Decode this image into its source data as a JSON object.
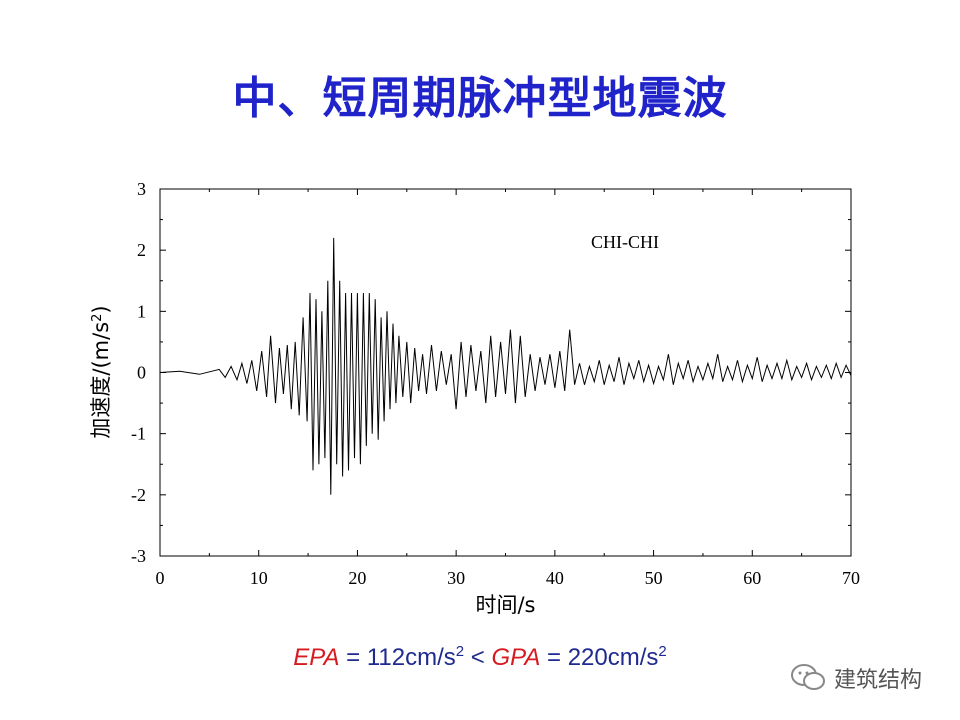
{
  "slide": {
    "title": "中、短周期脉冲型地震波"
  },
  "chart_data": {
    "type": "line",
    "title": "",
    "annotation": "CHI-CHI",
    "xlabel": "时间/s",
    "ylabel_main": "加速度/(m/s",
    "ylabel_sup": "2",
    "ylabel_end": ")",
    "xlim": [
      0,
      70
    ],
    "ylim": [
      -3,
      3
    ],
    "xticks": [
      0,
      10,
      20,
      30,
      40,
      50,
      60,
      70
    ],
    "yticks": [
      -3,
      -2,
      -1,
      0,
      1,
      2,
      3
    ],
    "grid": false,
    "series": [
      {
        "x": [
          0,
          2,
          4,
          6,
          6.6,
          7.2,
          7.8,
          8.3,
          8.8,
          9.3,
          9.8,
          10.3,
          10.8,
          11.2,
          11.7,
          12.1,
          12.5,
          12.9,
          13.3,
          13.7,
          14.1,
          14.5,
          14.9,
          15.2,
          15.5,
          15.8,
          16.1,
          16.4,
          16.7,
          17.0,
          17.3,
          17.6,
          17.9,
          18.2,
          18.5,
          18.8,
          19.1,
          19.4,
          19.7,
          20.0,
          20.3,
          20.6,
          20.9,
          21.2,
          21.5,
          21.8,
          22.1,
          22.4,
          22.7,
          23.0,
          23.3,
          23.6,
          23.9,
          24.2,
          24.6,
          25.0,
          25.4,
          25.8,
          26.2,
          26.6,
          27.0,
          27.5,
          28.0,
          28.5,
          29.0,
          29.5,
          30.0,
          30.5,
          31.0,
          31.5,
          32.0,
          32.5,
          33.0,
          33.5,
          34.0,
          34.5,
          35.0,
          35.5,
          36.0,
          36.5,
          37.0,
          37.5,
          38.0,
          38.5,
          39.0,
          39.5,
          40.0,
          40.5,
          41.0,
          41.5,
          42.0,
          42.5,
          43.0,
          43.5,
          44.0,
          44.5,
          45.0,
          45.5,
          46.0,
          46.5,
          47.0,
          47.5,
          48.0,
          48.5,
          49.0,
          49.5,
          50.0,
          50.5,
          51.0,
          51.5,
          52.0,
          52.5,
          53.0,
          53.5,
          54.0,
          54.5,
          55.0,
          55.5,
          56.0,
          56.5,
          57.0,
          57.5,
          58.0,
          58.5,
          59.0,
          59.5,
          60.0,
          60.5,
          61.0,
          61.5,
          62.0,
          62.5,
          63.0,
          63.5,
          64.0,
          64.5,
          65.0,
          65.5,
          66.0,
          66.5,
          67.0,
          67.5,
          68.0,
          68.5,
          69.0,
          69.5,
          70.0
        ],
        "y": [
          0,
          0.02,
          -0.03,
          0.05,
          -0.08,
          0.1,
          -0.12,
          0.15,
          -0.18,
          0.2,
          -0.3,
          0.35,
          -0.4,
          0.6,
          -0.5,
          0.4,
          -0.35,
          0.45,
          -0.6,
          0.5,
          -0.7,
          0.9,
          -0.8,
          1.3,
          -1.6,
          1.2,
          -1.5,
          1.0,
          -1.4,
          1.5,
          -2.0,
          2.2,
          -1.5,
          1.5,
          -1.7,
          1.3,
          -1.6,
          1.3,
          -1.4,
          1.3,
          -1.5,
          1.3,
          -1.2,
          1.3,
          -1.0,
          1.2,
          -1.1,
          0.9,
          -0.8,
          1.0,
          -0.6,
          0.8,
          -0.5,
          0.6,
          -0.4,
          0.5,
          -0.5,
          0.4,
          -0.3,
          0.3,
          -0.35,
          0.45,
          -0.3,
          0.35,
          -0.2,
          0.3,
          -0.6,
          0.5,
          -0.4,
          0.45,
          -0.3,
          0.35,
          -0.5,
          0.6,
          -0.4,
          0.5,
          -0.35,
          0.7,
          -0.5,
          0.6,
          -0.4,
          0.3,
          -0.3,
          0.25,
          -0.2,
          0.3,
          -0.25,
          0.35,
          -0.3,
          0.7,
          -0.2,
          0.15,
          -0.2,
          0.1,
          -0.15,
          0.2,
          -0.2,
          0.12,
          -0.15,
          0.25,
          -0.2,
          0.15,
          -0.1,
          0.2,
          -0.15,
          0.12,
          -0.18,
          0.1,
          -0.12,
          0.3,
          -0.2,
          0.15,
          -0.1,
          0.2,
          -0.15,
          0.1,
          -0.12,
          0.15,
          -0.1,
          0.3,
          -0.15,
          0.1,
          -0.12,
          0.2,
          -0.15,
          0.12,
          -0.1,
          0.25,
          -0.15,
          0.12,
          -0.1,
          0.15,
          -0.1,
          0.2,
          -0.12,
          0.1,
          -0.08,
          0.15,
          -0.12,
          0.1,
          -0.08,
          0.12,
          -0.1,
          0.15,
          -0.08,
          0.12,
          -0.05
        ]
      }
    ]
  },
  "footer": {
    "epa_label": "EPA",
    "epa_value": " = 112cm/s",
    "epa_sup": "2",
    "compare": " < ",
    "gpa_label": "GPA",
    "gpa_value": " = 220cm/s",
    "gpa_sup": "2"
  },
  "watermark": {
    "text": "建筑结构",
    "icon": "chat-bubble-icon"
  }
}
